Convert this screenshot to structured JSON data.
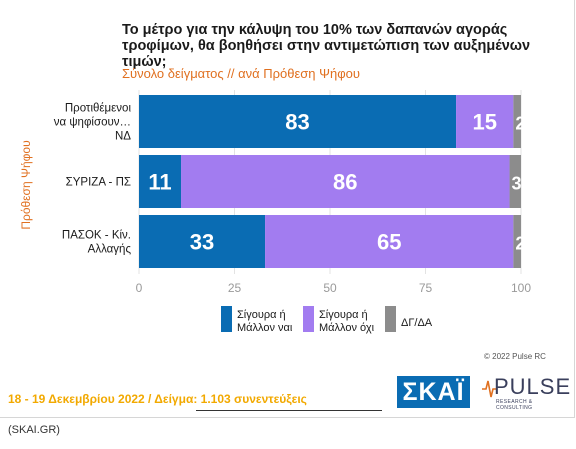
{
  "title": "Το μέτρο για την κάλυψη του 10% των δαπανών αγοράς τροφίμων, θα βοηθήσει στην αντιμετώπιση των αυξημένων τιμών;",
  "subtitle": "Σύνολο δείγματος // ανά Πρόθεση Ψήφου",
  "footer": {
    "dates": "18 - 19 Δεκεμβρίου  2022  /  Δείγμα:  1.103 συνεντεύξεις",
    "source": "(SKAI.GR)",
    "copyright": "© 2022 Pulse RC"
  },
  "logos": {
    "skai": "ΣΚΑΪ",
    "pulse": "PULSE",
    "pulse_tagline": "RESEARCH & CONSULTING"
  },
  "chart_data": {
    "type": "bar",
    "orientation": "horizontal",
    "stacked": true,
    "ylabel": "Πρόθεση Ψήφου",
    "categories": [
      [
        "Προτιθέμενοι",
        "να ψηφίσουν…",
        "ΝΔ"
      ],
      [
        "ΣΥΡΙΖΑ - ΠΣ"
      ],
      [
        "ΠΑΣΟΚ - Κίν.",
        "Αλλαγής"
      ]
    ],
    "series": [
      {
        "name": "Σίγουρα ή\nΜάλλον ναι",
        "color": "#0a6cb3",
        "values": [
          83,
          11,
          33
        ]
      },
      {
        "name": "Σίγουρα ή\nΜάλλον όχι",
        "color": "#a27cf0",
        "values": [
          15,
          86,
          65
        ]
      },
      {
        "name": "ΔΓ/ΔΑ",
        "color": "#8c8c8c",
        "values": [
          2,
          3,
          2
        ]
      }
    ],
    "xlim": [
      0,
      100
    ],
    "xticks": [
      0,
      25,
      50,
      75,
      100
    ],
    "grid": true,
    "legend": "bottom"
  }
}
